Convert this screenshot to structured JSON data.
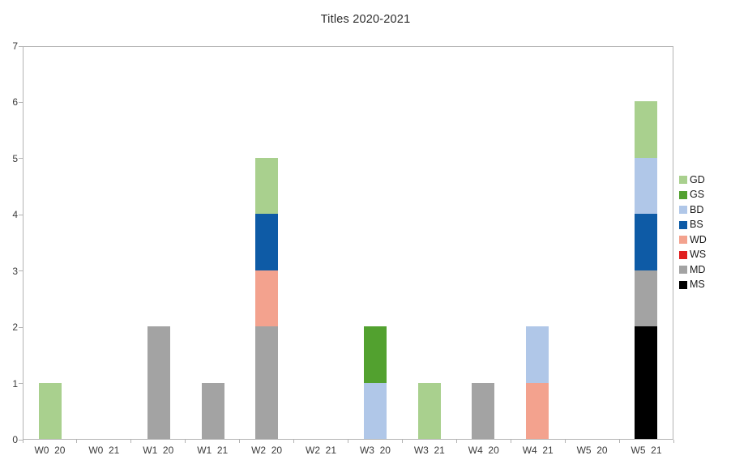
{
  "chart_data": {
    "type": "bar",
    "stacked": true,
    "title": "Titles 2020-2021",
    "categories": [
      "W0  20",
      "W0  21",
      "W1  20",
      "W1  21",
      "W2  20",
      "W2  21",
      "W3  20",
      "W3  21",
      "W4  20",
      "W4  21",
      "W5  20",
      "W5  21"
    ],
    "series": [
      {
        "name": "MS",
        "color": "#000000",
        "values": [
          0,
          0,
          0,
          0,
          0,
          0,
          0,
          0,
          0,
          0,
          0,
          2
        ]
      },
      {
        "name": "MD",
        "color": "#a3a3a3",
        "values": [
          0,
          0,
          2,
          1,
          2,
          0,
          0,
          0,
          1,
          0,
          0,
          1
        ]
      },
      {
        "name": "WS",
        "color": "#e01f1f",
        "values": [
          0,
          0,
          0,
          0,
          0,
          0,
          0,
          0,
          0,
          0,
          0,
          0
        ]
      },
      {
        "name": "WD",
        "color": "#f3a28e",
        "values": [
          0,
          0,
          0,
          0,
          1,
          0,
          0,
          0,
          0,
          1,
          0,
          0
        ]
      },
      {
        "name": "BS",
        "color": "#0e5ba6",
        "values": [
          0,
          0,
          0,
          0,
          1,
          0,
          0,
          0,
          0,
          0,
          0,
          1
        ]
      },
      {
        "name": "BD",
        "color": "#b0c7e8",
        "values": [
          0,
          0,
          0,
          0,
          0,
          0,
          1,
          0,
          0,
          1,
          0,
          1
        ]
      },
      {
        "name": "GS",
        "color": "#52a12f",
        "values": [
          0,
          0,
          0,
          0,
          0,
          0,
          1,
          0,
          0,
          0,
          0,
          0
        ]
      },
      {
        "name": "GD",
        "color": "#a9d08e",
        "values": [
          1,
          0,
          0,
          0,
          1,
          0,
          0,
          1,
          0,
          0,
          0,
          1
        ]
      }
    ],
    "stack_order_note": "series listed bottom-to-top",
    "legend": {
      "position": "right",
      "entries": [
        "GD",
        "GS",
        "BD",
        "BS",
        "WD",
        "WS",
        "MD",
        "MS"
      ]
    },
    "xlabel": "",
    "ylabel": "",
    "ylim": [
      0,
      7
    ],
    "y_ticks": [
      0,
      1,
      2,
      3,
      4,
      5,
      6,
      7
    ],
    "grid": false,
    "axis_color": "#b3b3b3"
  }
}
